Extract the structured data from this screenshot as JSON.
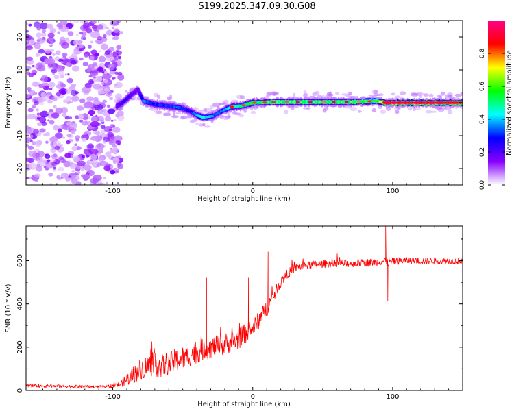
{
  "title": "S199.2025.347.09.30.G08",
  "chart_data": [
    {
      "type": "heatmap",
      "xlabel": "Height of straight line (km)",
      "ylabel": "Frequency (Hz)",
      "xlim": [
        -162,
        150
      ],
      "ylim": [
        -25,
        25
      ],
      "x_ticks": [
        -100,
        0,
        100
      ],
      "y_ticks": [
        -20,
        -10,
        0,
        10,
        20
      ],
      "noise_region_x": [
        -162,
        -97
      ],
      "ridge": [
        {
          "x": -97,
          "y": -1,
          "amp": 0.15
        },
        {
          "x": -93,
          "y": 0,
          "amp": 0.25
        },
        {
          "x": -88,
          "y": 2,
          "amp": 0.2
        },
        {
          "x": -82,
          "y": 4,
          "amp": 0.15
        },
        {
          "x": -78,
          "y": 0.5,
          "amp": 0.35
        },
        {
          "x": -70,
          "y": -0.5,
          "amp": 0.3
        },
        {
          "x": -60,
          "y": -1,
          "amp": 0.3
        },
        {
          "x": -52,
          "y": -1.5,
          "amp": 0.35
        },
        {
          "x": -45,
          "y": -2.5,
          "amp": 0.25
        },
        {
          "x": -40,
          "y": -3.8,
          "amp": 0.4
        },
        {
          "x": -35,
          "y": -4.5,
          "amp": 0.45
        },
        {
          "x": -28,
          "y": -4,
          "amp": 0.35
        },
        {
          "x": -22,
          "y": -2.5,
          "amp": 0.35
        },
        {
          "x": -15,
          "y": -1.2,
          "amp": 0.45
        },
        {
          "x": -8,
          "y": -1,
          "amp": 0.5
        },
        {
          "x": 0,
          "y": 0,
          "amp": 0.55
        },
        {
          "x": 15,
          "y": 0.2,
          "amp": 0.6
        },
        {
          "x": 30,
          "y": 0.2,
          "amp": 0.6
        },
        {
          "x": 50,
          "y": 0.2,
          "amp": 0.6
        },
        {
          "x": 70,
          "y": 0.2,
          "amp": 0.62
        },
        {
          "x": 88,
          "y": 0.5,
          "amp": 0.55
        },
        {
          "x": 95,
          "y": 0,
          "amp": 0.85
        },
        {
          "x": 110,
          "y": 0,
          "amp": 0.9
        },
        {
          "x": 130,
          "y": 0,
          "amp": 0.88
        },
        {
          "x": 150,
          "y": 0,
          "amp": 0.85
        }
      ],
      "colorbar": {
        "label": "Normalized spectral amplitude",
        "range": [
          0,
          1
        ],
        "ticks": [
          0.0,
          0.2,
          0.4,
          0.6,
          0.8
        ],
        "tick_labels": [
          "0.0",
          "0.2",
          "0.4",
          "0.6",
          "0.8"
        ],
        "colors": [
          "#ffffff",
          "#8800ff",
          "#0000ff",
          "#00ffff",
          "#00ff00",
          "#ffff00",
          "#ff0000",
          "#ff0088"
        ]
      }
    },
    {
      "type": "line",
      "xlabel": "Height of straight line (km)",
      "ylabel": "SNR (10 * v/v)",
      "xlim": [
        -162,
        150
      ],
      "ylim": [
        0,
        760
      ],
      "x_ticks": [
        -100,
        0,
        100
      ],
      "y_ticks": [
        0,
        200,
        400,
        600
      ],
      "series": [
        {
          "name": "SNR",
          "color": "#ff0000",
          "x": [
            -162,
            -140,
            -120,
            -105,
            -95,
            -88,
            -80,
            -72,
            -65,
            -58,
            -50,
            -42,
            -35,
            -28,
            -20,
            -12,
            -5,
            0,
            5,
            10,
            15,
            20,
            25,
            30,
            40,
            50,
            60,
            70,
            80,
            90,
            95,
            97,
            100,
            110,
            120,
            130,
            140,
            150
          ],
          "mean": [
            22,
            20,
            18,
            16,
            28,
            60,
            100,
            120,
            115,
            130,
            150,
            170,
            190,
            200,
            215,
            230,
            265,
            290,
            330,
            380,
            440,
            500,
            540,
            565,
            580,
            585,
            585,
            588,
            590,
            595,
            600,
            590,
            598,
            600,
            598,
            600,
            598,
            600
          ],
          "noise": [
            7,
            7,
            7,
            7,
            12,
            35,
            50,
            55,
            55,
            55,
            55,
            50,
            50,
            50,
            50,
            50,
            45,
            40,
            40,
            40,
            30,
            25,
            22,
            20,
            18,
            18,
            18,
            18,
            18,
            18,
            20,
            20,
            18,
            15,
            15,
            15,
            15,
            15
          ],
          "spikes": [
            {
              "x": -33,
              "y": 520
            },
            {
              "x": -3,
              "y": 520
            },
            {
              "x": 11,
              "y": 640
            },
            {
              "x": 95,
              "y": 760
            },
            {
              "x": 96.5,
              "y": 415
            }
          ]
        }
      ]
    }
  ]
}
